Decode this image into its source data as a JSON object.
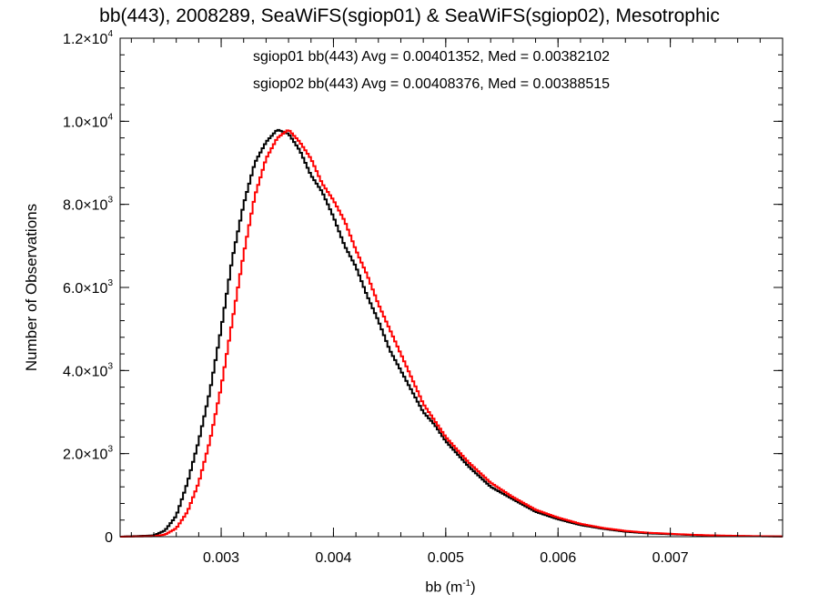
{
  "chart_data": {
    "type": "line",
    "title": "bb(443), 2008289, SeaWiFS(sgiop01) & SeaWiFS(sgiop02), Mesotrophic",
    "xlabel": "bb (m",
    "xlabel_exp": "-1",
    "xlabel_close": ")",
    "ylabel": "Number of Observations",
    "xlim": [
      0.0021,
      0.008
    ],
    "ylim": [
      0,
      12000
    ],
    "x_ticks": [
      {
        "value": 0.003,
        "label": "0.003"
      },
      {
        "value": 0.004,
        "label": "0.004"
      },
      {
        "value": 0.005,
        "label": "0.005"
      },
      {
        "value": 0.006,
        "label": "0.006"
      },
      {
        "value": 0.007,
        "label": "0.007"
      }
    ],
    "x_minor_step": 0.0002,
    "y_ticks": [
      {
        "value": 0,
        "label": "0",
        "exp": ""
      },
      {
        "value": 2000,
        "label": "2.0×10",
        "exp": "3"
      },
      {
        "value": 4000,
        "label": "4.0×10",
        "exp": "3"
      },
      {
        "value": 6000,
        "label": "6.0×10",
        "exp": "3"
      },
      {
        "value": 8000,
        "label": "8.0×10",
        "exp": "3"
      },
      {
        "value": 10000,
        "label": "1.0×10",
        "exp": "4"
      },
      {
        "value": 12000,
        "label": "1.2×10",
        "exp": "4"
      }
    ],
    "y_minor_step": 400,
    "grid": false,
    "legend_placement": "top-center",
    "series": [
      {
        "name": "sgiop01",
        "color": "#000000",
        "legend": "sgiop01 bb(443) Avg = 0.00401352, Med = 0.00382102",
        "x": [
          0.0021,
          0.0024,
          0.0025,
          0.0026,
          0.0027,
          0.0028,
          0.0029,
          0.003,
          0.0031,
          0.0032,
          0.0033,
          0.0034,
          0.0035,
          0.0036,
          0.0037,
          0.0038,
          0.0039,
          0.004,
          0.0041,
          0.0042,
          0.0043,
          0.0044,
          0.0045,
          0.0046,
          0.0047,
          0.0048,
          0.0049,
          0.005,
          0.0052,
          0.0054,
          0.0056,
          0.0058,
          0.006,
          0.0062,
          0.0064,
          0.0066,
          0.0068,
          0.007,
          0.0072,
          0.0074,
          0.0076,
          0.0078,
          0.008
        ],
        "y": [
          0,
          30,
          150,
          500,
          1300,
          2300,
          3500,
          5000,
          6700,
          8000,
          9000,
          9500,
          9800,
          9700,
          9300,
          8700,
          8300,
          7700,
          7000,
          6500,
          5800,
          5200,
          4500,
          4000,
          3500,
          3000,
          2700,
          2300,
          1700,
          1200,
          900,
          600,
          420,
          280,
          190,
          120,
          80,
          60,
          40,
          25,
          15,
          10,
          5
        ]
      },
      {
        "name": "sgiop02",
        "color": "#ff0000",
        "legend": "sgiop02 bb(443) Avg = 0.00408376, Med = 0.00388515",
        "x": [
          0.0021,
          0.0024,
          0.0025,
          0.0026,
          0.0027,
          0.0028,
          0.0029,
          0.003,
          0.0031,
          0.0032,
          0.0033,
          0.0034,
          0.0035,
          0.0036,
          0.0037,
          0.0038,
          0.0039,
          0.004,
          0.0041,
          0.0042,
          0.0043,
          0.0044,
          0.0045,
          0.0046,
          0.0047,
          0.0048,
          0.0049,
          0.005,
          0.0052,
          0.0054,
          0.0056,
          0.0058,
          0.006,
          0.0062,
          0.0064,
          0.0066,
          0.0068,
          0.007,
          0.0072,
          0.0074,
          0.0076,
          0.0078,
          0.008
        ],
        "y": [
          0,
          10,
          50,
          200,
          600,
          1300,
          2300,
          3600,
          5200,
          6800,
          8200,
          9100,
          9600,
          9800,
          9500,
          9100,
          8500,
          8100,
          7600,
          6900,
          6300,
          5600,
          5000,
          4400,
          3800,
          3200,
          2800,
          2400,
          1800,
          1300,
          950,
          650,
          460,
          310,
          210,
          140,
          95,
          70,
          45,
          30,
          20,
          12,
          6
        ]
      }
    ]
  }
}
